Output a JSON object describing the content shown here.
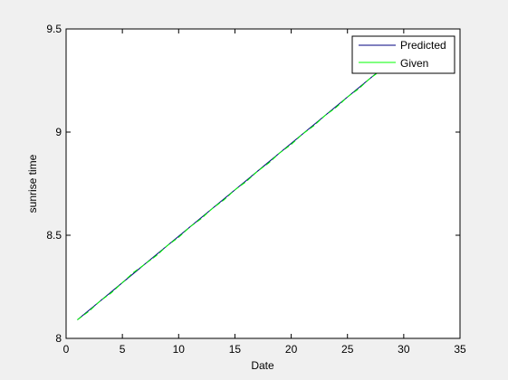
{
  "chart_data": {
    "type": "line",
    "title": "",
    "xlabel": "Date",
    "ylabel": "sunrise time",
    "xlim": [
      0,
      35
    ],
    "ylim": [
      8,
      9.5
    ],
    "xticks": [
      0,
      5,
      10,
      15,
      20,
      25,
      30,
      35
    ],
    "yticks": [
      8,
      8.5,
      9,
      9.5
    ],
    "xtick_labels": [
      "0",
      "5",
      "10",
      "15",
      "20",
      "25",
      "30",
      "35"
    ],
    "ytick_labels": [
      "8",
      "8.5",
      "9",
      "9.5"
    ],
    "grid": false,
    "legend_position": "top-right",
    "series": [
      {
        "name": "Predicted",
        "color": "#00007f",
        "x": [
          1,
          2,
          3,
          4,
          5,
          6,
          7,
          8,
          9,
          10,
          11,
          12,
          13,
          14,
          15,
          16,
          17,
          18,
          19,
          20,
          21,
          22,
          23,
          24,
          25,
          26,
          27,
          28,
          29
        ],
        "values": [
          8.09,
          8.135,
          8.18,
          8.225,
          8.27,
          8.315,
          8.36,
          8.405,
          8.45,
          8.495,
          8.54,
          8.585,
          8.63,
          8.675,
          8.72,
          8.765,
          8.81,
          8.855,
          8.9,
          8.945,
          8.99,
          9.035,
          9.08,
          9.125,
          9.17,
          9.215,
          9.26,
          9.305,
          9.35
        ]
      },
      {
        "name": "Given",
        "color": "#00ff00",
        "x": [
          1,
          2,
          3,
          4,
          5,
          6,
          7,
          8,
          9,
          10,
          11,
          12,
          13,
          14,
          15,
          16,
          17,
          18,
          19,
          20,
          21,
          22,
          23,
          24,
          25,
          26,
          27,
          28,
          29
        ],
        "values": [
          8.09,
          8.13,
          8.18,
          8.22,
          8.27,
          8.32,
          8.36,
          8.4,
          8.45,
          8.49,
          8.54,
          8.58,
          8.63,
          8.67,
          8.72,
          8.76,
          8.81,
          8.85,
          8.9,
          8.94,
          8.99,
          9.03,
          9.08,
          9.12,
          9.17,
          9.21,
          9.26,
          9.3,
          9.35
        ]
      }
    ]
  }
}
